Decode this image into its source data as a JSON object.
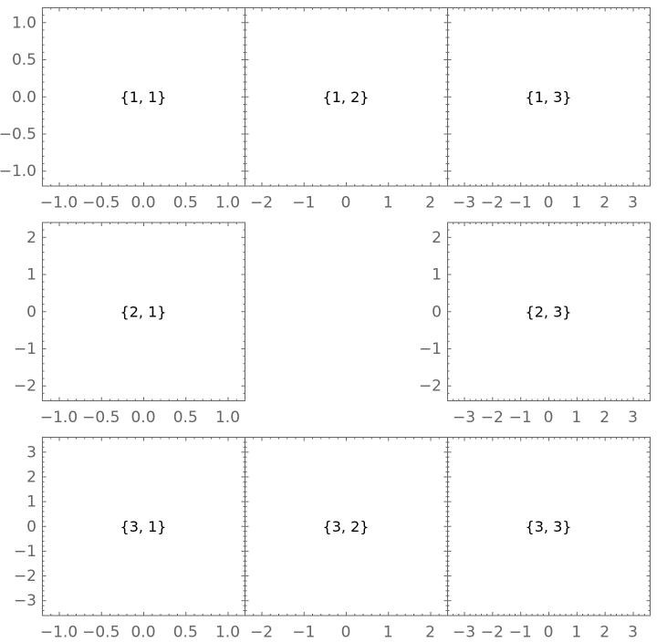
{
  "chart_data": {
    "type": "grid",
    "frame_color": "#666666",
    "tick_label_color": "#666666",
    "rows": 3,
    "cols": 3,
    "panels": [
      {
        "row": 1,
        "col": 1,
        "label": "{1, 1}",
        "xlim": [
          -1.2,
          1.2
        ],
        "ylim": [
          -1.2,
          1.2
        ],
        "xticks": [
          "−1.0",
          "−0.5",
          "0.0",
          "0.5",
          "1.0"
        ],
        "xtick_values": [
          -1,
          -0.5,
          0,
          0.5,
          1
        ],
        "yticks": [
          "−1.0",
          "−0.5",
          "0.0",
          "0.5",
          "1.0"
        ],
        "ytick_values": [
          -1,
          -0.5,
          0,
          0.5,
          1
        ],
        "show_xticks": true,
        "show_yticks": true
      },
      {
        "row": 1,
        "col": 2,
        "label": "{1, 2}",
        "xlim": [
          -2.4,
          2.4
        ],
        "ylim": [
          -1.2,
          1.2
        ],
        "xticks": [
          "−2",
          "−1",
          "0",
          "1",
          "2"
        ],
        "xtick_values": [
          -2,
          -1,
          0,
          1,
          2
        ],
        "yticks": [],
        "ytick_values": [
          -1,
          -0.5,
          0,
          0.5,
          1
        ],
        "show_xticks": true,
        "show_yticks": false
      },
      {
        "row": 1,
        "col": 3,
        "label": "{1, 3}",
        "xlim": [
          -3.6,
          3.6
        ],
        "ylim": [
          -1.2,
          1.2
        ],
        "xticks": [
          "−3",
          "−2",
          "−1",
          "0",
          "1",
          "2",
          "3"
        ],
        "xtick_values": [
          -3,
          -2,
          -1,
          0,
          1,
          2,
          3
        ],
        "yticks": [],
        "ytick_values": [
          -1,
          -0.5,
          0,
          0.5,
          1
        ],
        "show_xticks": true,
        "show_yticks": false
      },
      {
        "row": 2,
        "col": 1,
        "label": "{2, 1}",
        "xlim": [
          -1.2,
          1.2
        ],
        "ylim": [
          -2.4,
          2.4
        ],
        "xticks": [
          "−1.0",
          "−0.5",
          "0.0",
          "0.5",
          "1.0"
        ],
        "xtick_values": [
          -1,
          -0.5,
          0,
          0.5,
          1
        ],
        "yticks": [
          "−2",
          "−1",
          "0",
          "1",
          "2"
        ],
        "ytick_values": [
          -2,
          -1,
          0,
          1,
          2
        ],
        "show_xticks": true,
        "show_yticks": true
      },
      {
        "row": 2,
        "col": 3,
        "label": "{2, 3}",
        "xlim": [
          -3.6,
          3.6
        ],
        "ylim": [
          -2.4,
          2.4
        ],
        "xticks": [
          "−3",
          "−2",
          "−1",
          "0",
          "1",
          "2",
          "3"
        ],
        "xtick_values": [
          -3,
          -2,
          -1,
          0,
          1,
          2,
          3
        ],
        "yticks": [
          "−2",
          "−1",
          "0",
          "1",
          "2"
        ],
        "ytick_values": [
          -2,
          -1,
          0,
          1,
          2
        ],
        "show_xticks": true,
        "show_yticks": true
      },
      {
        "row": 3,
        "col": 1,
        "label": "{3, 1}",
        "xlim": [
          -1.2,
          1.2
        ],
        "ylim": [
          -3.6,
          3.6
        ],
        "xticks": [
          "−1.0",
          "−0.5",
          "0.0",
          "0.5",
          "1.0"
        ],
        "xtick_values": [
          -1,
          -0.5,
          0,
          0.5,
          1
        ],
        "yticks": [
          "−3",
          "−2",
          "−1",
          "0",
          "1",
          "2",
          "3"
        ],
        "ytick_values": [
          -3,
          -2,
          -1,
          0,
          1,
          2,
          3
        ],
        "show_xticks": true,
        "show_yticks": true
      },
      {
        "row": 3,
        "col": 2,
        "label": "{3, 2}",
        "xlim": [
          -2.4,
          2.4
        ],
        "ylim": [
          -3.6,
          3.6
        ],
        "xticks": [
          "−2",
          "−1",
          "0",
          "1",
          "2"
        ],
        "xtick_values": [
          -2,
          -1,
          0,
          1,
          2
        ],
        "yticks": [],
        "ytick_values": [
          -3,
          -2,
          -1,
          0,
          1,
          2,
          3
        ],
        "show_xticks": true,
        "show_yticks": false
      },
      {
        "row": 3,
        "col": 3,
        "label": "{3, 3}",
        "xlim": [
          -3.6,
          3.6
        ],
        "ylim": [
          -3.6,
          3.6
        ],
        "xticks": [
          "−3",
          "−2",
          "−1",
          "0",
          "1",
          "2",
          "3"
        ],
        "xtick_values": [
          -3,
          -2,
          -1,
          0,
          1,
          2,
          3
        ],
        "yticks": [],
        "ytick_values": [
          -3,
          -2,
          -1,
          0,
          1,
          2,
          3
        ],
        "show_xticks": true,
        "show_yticks": false
      }
    ]
  }
}
